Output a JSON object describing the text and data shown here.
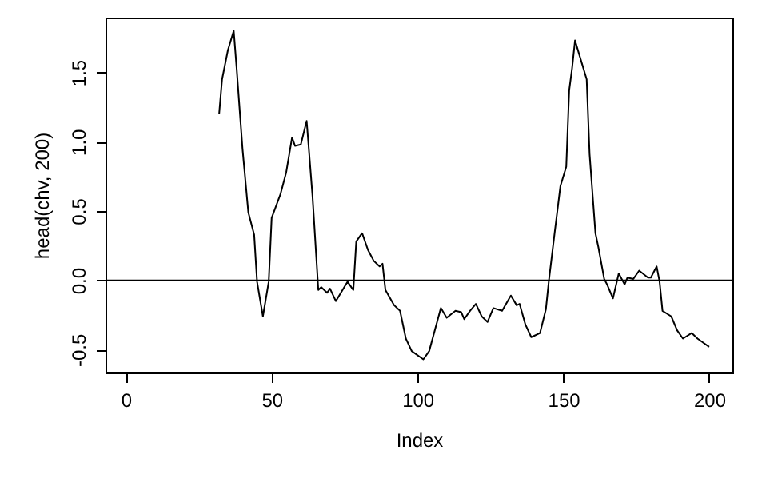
{
  "chart_data": {
    "type": "line",
    "xlabel": "Index",
    "ylabel": "head(chv, 200)",
    "x": [
      32,
      33,
      35,
      37,
      38,
      40,
      42,
      44,
      45,
      47,
      49,
      50,
      53,
      55,
      57,
      58,
      60,
      62,
      64,
      66,
      67,
      69,
      70,
      72,
      76,
      78,
      79,
      81,
      83,
      85,
      87,
      88,
      89,
      92,
      94,
      96,
      98,
      102,
      104,
      108,
      110,
      113,
      115,
      116,
      118,
      120,
      122,
      124,
      126,
      129,
      132,
      134,
      135,
      137,
      139,
      142,
      144,
      145,
      147,
      149,
      151,
      152,
      153,
      154,
      156,
      158,
      159,
      161,
      162,
      164,
      165,
      167,
      169,
      171,
      172,
      174,
      176,
      179,
      180,
      182,
      183,
      184,
      187,
      189,
      191,
      194,
      196,
      198,
      200
    ],
    "series": [
      {
        "color": "#000000",
        "values": [
          1.2,
          1.45,
          1.66,
          1.8,
          1.53,
          0.95,
          0.49,
          0.33,
          -0.01,
          -0.26,
          -0.01,
          0.45,
          0.62,
          0.78,
          1.03,
          0.97,
          0.98,
          1.15,
          0.61,
          -0.07,
          -0.05,
          -0.09,
          -0.06,
          -0.15,
          -0.01,
          -0.07,
          0.28,
          0.34,
          0.22,
          0.14,
          0.1,
          0.12,
          -0.07,
          -0.18,
          -0.22,
          -0.42,
          -0.51,
          -0.57,
          -0.51,
          -0.2,
          -0.27,
          -0.22,
          -0.23,
          -0.28,
          -0.22,
          -0.17,
          -0.26,
          -0.3,
          -0.2,
          -0.22,
          -0.11,
          -0.18,
          -0.17,
          -0.32,
          -0.41,
          -0.38,
          -0.21,
          -0.01,
          0.34,
          0.68,
          0.82,
          1.37,
          1.53,
          1.73,
          1.59,
          1.45,
          0.91,
          0.34,
          0.24,
          0.01,
          -0.03,
          -0.13,
          0.05,
          -0.03,
          0.02,
          0.01,
          0.07,
          0.02,
          0.02,
          0.1,
          -0.01,
          -0.22,
          -0.26,
          -0.36,
          -0.42,
          -0.38,
          -0.42,
          -0.45,
          -0.48
        ]
      }
    ],
    "xlim": [
      -6.96,
      207.96
    ],
    "xticks": [
      0,
      50,
      100,
      150,
      200
    ],
    "ylim": [
      -0.665,
      1.895
    ],
    "yticks": [
      {
        "value": -0.5,
        "label": "-0.5"
      },
      {
        "value": 0,
        "label": "0.0"
      },
      {
        "value": 0.5,
        "label": "0.5"
      },
      {
        "value": 1,
        "label": "1.0"
      },
      {
        "value": 1.5,
        "label": "1.5"
      }
    ],
    "ref_lines": [
      {
        "axis": "y",
        "value": 0,
        "color": "#000000"
      }
    ],
    "grid": false,
    "marker": "none",
    "line_style": "solid"
  }
}
